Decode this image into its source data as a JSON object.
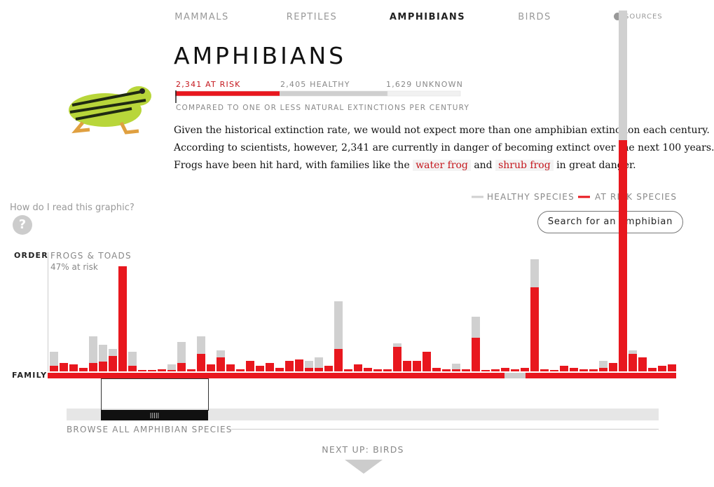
{
  "nav": [
    "MAMMALS",
    "REPTILES",
    "AMPHIBIANS",
    "BIRDS"
  ],
  "sources": "SOURCES",
  "header": {
    "title": "AMPHIBIANS",
    "stats": [
      {
        "label": "2,341 AT RISK",
        "value": 2341,
        "color": "#e8171e"
      },
      {
        "label": "2,405 HEALTHY",
        "value": 2405,
        "color": "#cfcfcf"
      },
      {
        "label": "1,629 UNKNOWN",
        "value": 1629,
        "color": "#f1f1f1"
      }
    ],
    "comparison": "COMPARED TO ONE OR LESS NATURAL EXTINCTIONS PER CENTURY"
  },
  "intro": {
    "line1": "Given the historical extinction rate, we would not expect more than one amphibian extinction each century.",
    "line2": "According to scientists, however, 2,341 are currently in danger of becoming extinct over the next 100 years.",
    "line3_start": "Frogs have been hit hard, with families like the",
    "link1": "water frog",
    "joiner": "and",
    "link2": "shrub frog",
    "line3_end": "in great danger."
  },
  "help": "How do I read this graphic?",
  "search": "Search for an amphibian",
  "order_label": "ORDER",
  "order_name": "FROGS & TOADS",
  "order_risk": "47% at risk",
  "family_label": "FAMILY",
  "browse": "BROWSE ALL AMPHIBIAN SPECIES",
  "next": "NEXT UP: BIRDS",
  "chart_data": {
    "type": "bar",
    "stacked": true,
    "ylim": [
      0,
      520
    ],
    "series": [
      {
        "name": "AT RISK SPECIES",
        "color": "#e8171e",
        "values": [
          8,
          12,
          10,
          5,
          12,
          14,
          22,
          150,
          8,
          2,
          2,
          3,
          2,
          12,
          3,
          25,
          10,
          20,
          10,
          3,
          15,
          8,
          12,
          5,
          15,
          17,
          5,
          5,
          8,
          32,
          3,
          10,
          5,
          3,
          3,
          35,
          15,
          15,
          28,
          5,
          3,
          3,
          3,
          48,
          2,
          3,
          5,
          3,
          5,
          120,
          3,
          2,
          8,
          5,
          3,
          3,
          5,
          12,
          330,
          25,
          20,
          5,
          8,
          10
        ]
      },
      {
        "name": "HEALTHY SPECIES",
        "color": "#d0d0d0",
        "values": [
          20,
          0,
          0,
          0,
          38,
          24,
          10,
          0,
          20,
          0,
          0,
          0,
          8,
          30,
          0,
          25,
          0,
          10,
          0,
          0,
          0,
          0,
          0,
          0,
          0,
          0,
          10,
          15,
          0,
          68,
          0,
          0,
          0,
          0,
          0,
          5,
          0,
          0,
          0,
          0,
          0,
          8,
          0,
          30,
          0,
          0,
          0,
          0,
          0,
          40,
          0,
          0,
          0,
          0,
          0,
          0,
          10,
          0,
          185,
          5,
          0,
          0,
          0,
          0
        ]
      }
    ]
  }
}
